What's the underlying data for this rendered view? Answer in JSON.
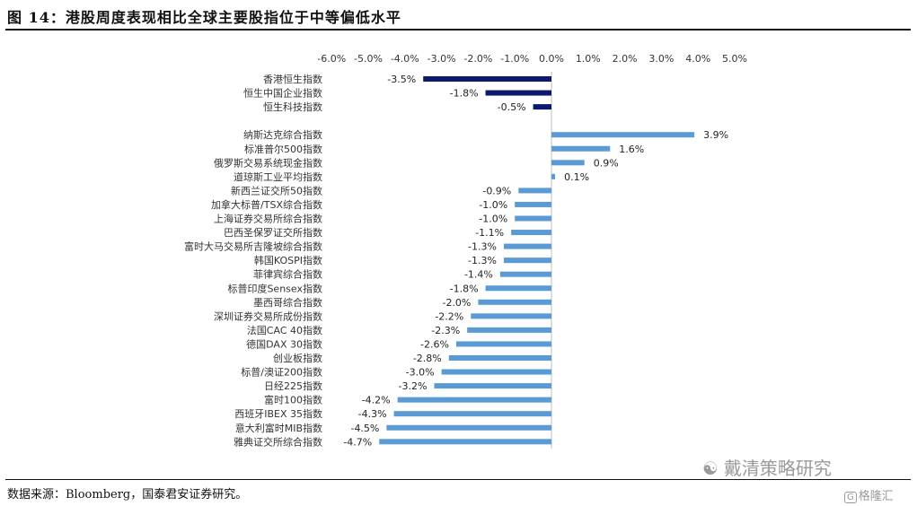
{
  "header": {
    "figure_title": "图 14：港股周度表现相比全球主要股指位于中等偏低水平"
  },
  "footer": {
    "source": "数据来源：Bloomberg，国泰君安证券研究。",
    "watermark": "戴清策略研究",
    "brand": "格隆汇"
  },
  "icons": {
    "watermark_icon": "wechat-icon",
    "brand_icon": "gelonghui-logo-icon"
  },
  "colors": {
    "hk_bar": "#0d1a6b",
    "global_bar": "#5b9bd5"
  },
  "chart_data": {
    "type": "bar",
    "orientation": "horizontal",
    "xlim": [
      -6.0,
      5.0
    ],
    "x_ticks": [
      "-6.0%",
      "-5.0%",
      "-4.0%",
      "-3.0%",
      "-2.0%",
      "-1.0%",
      "0.0%",
      "1.0%",
      "2.0%",
      "3.0%",
      "4.0%",
      "5.0%"
    ],
    "x_tick_values": [
      -6,
      -5,
      -4,
      -3,
      -2,
      -1,
      0,
      1,
      2,
      3,
      4,
      5
    ],
    "x_axis_position": "top",
    "grid": false,
    "legend": "none",
    "groups": [
      {
        "color_key": "hk_bar",
        "categories": [
          "香港恒生指数",
          "恒生中国企业指数",
          "恒生科技指数"
        ],
        "values": [
          -3.5,
          -1.8,
          -0.5
        ],
        "labels": [
          "-3.5%",
          "-1.8%",
          "-0.5%"
        ]
      },
      {
        "color_key": "global_bar",
        "categories": [
          "纳斯达克综合指数",
          "标准普尔500指数",
          "俄罗斯交易系统现金指数",
          "道琼斯工业平均指数",
          "新西兰证交所50指数",
          "加拿大标普/TSX综合指数",
          "上海证券交易所综合指数",
          "巴西圣保罗证交所指数",
          "富时大马交易所吉隆坡综合指数",
          "韩国KOSPI指数",
          "菲律宾综合指数",
          "标普印度Sensex指数",
          "墨西哥综合指数",
          "深圳证券交易所成份指数",
          "法国CAC 40指数",
          "德国DAX 30指数",
          "创业板指数",
          "标普/澳证200指数",
          "日经225指数",
          "富时100指数",
          "西班牙IBEX 35指数",
          "意大利富时MIB指数",
          "雅典证交所综合指数"
        ],
        "values": [
          3.9,
          1.6,
          0.9,
          0.1,
          -0.9,
          -1.0,
          -1.0,
          -1.1,
          -1.3,
          -1.3,
          -1.4,
          -1.8,
          -2.0,
          -2.2,
          -2.3,
          -2.6,
          -2.8,
          -3.0,
          -3.2,
          -4.2,
          -4.3,
          -4.5,
          -4.7
        ],
        "labels": [
          "3.9%",
          "1.6%",
          "0.9%",
          "0.1%",
          "-0.9%",
          "-1.0%",
          "-1.0%",
          "-1.1%",
          "-1.3%",
          "-1.3%",
          "-1.4%",
          "-1.8%",
          "-2.0%",
          "-2.2%",
          "-2.3%",
          "-2.6%",
          "-2.8%",
          "-3.0%",
          "-3.2%",
          "-4.2%",
          "-4.3%",
          "-4.5%",
          "-4.7%"
        ]
      }
    ]
  }
}
